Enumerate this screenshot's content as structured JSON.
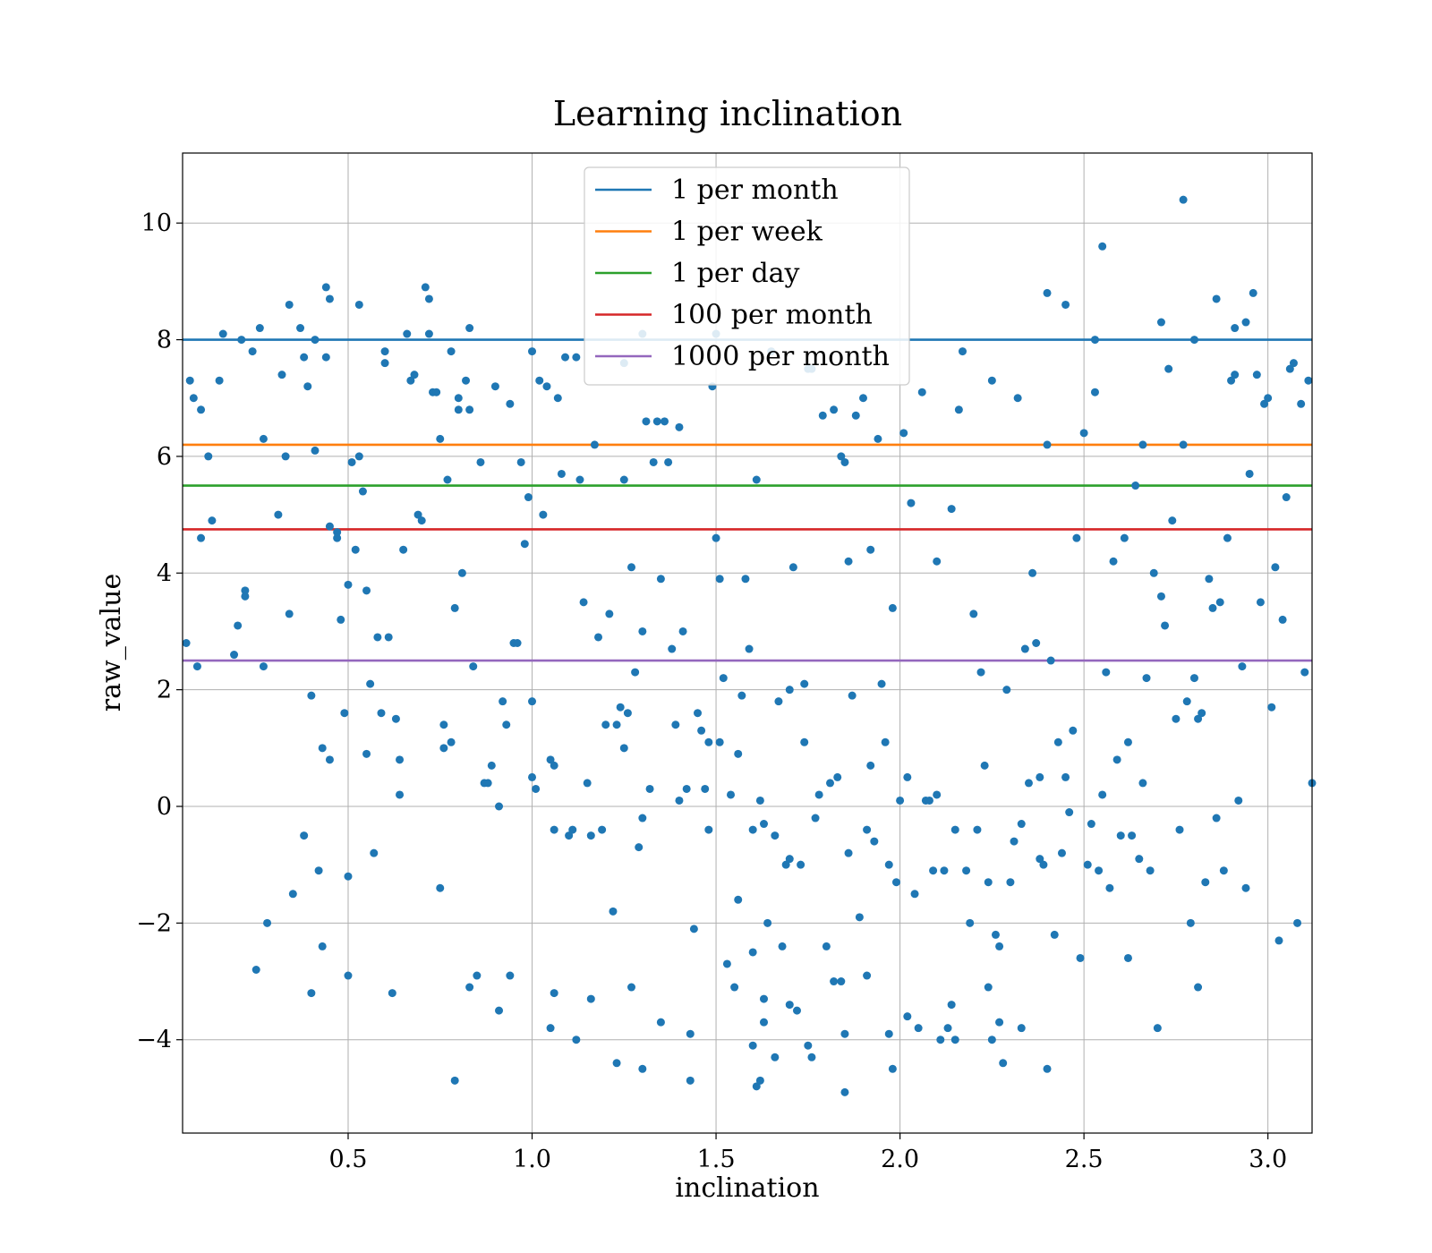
{
  "chart_data": {
    "type": "scatter",
    "title": "Learning inclination",
    "xlabel": "inclination",
    "ylabel": "raw_value",
    "xlim": [
      0.05,
      3.12
    ],
    "ylim": [
      -5.6,
      11.2
    ],
    "xticks": [
      0.5,
      1.0,
      1.5,
      2.0,
      2.5,
      3.0
    ],
    "xtick_labels": [
      "0.5",
      "1.0",
      "1.5",
      "2.0",
      "2.5",
      "3.0"
    ],
    "yticks": [
      -4,
      -2,
      0,
      2,
      4,
      6,
      8,
      10
    ],
    "ytick_labels": [
      "−4",
      "−2",
      "0",
      "2",
      "4",
      "6",
      "8",
      "10"
    ],
    "grid": true,
    "legend_position": "upper center",
    "point_color": "#1f77b4",
    "hlines": [
      {
        "name": "1 per month",
        "y": 8.0,
        "color": "#1f77b4"
      },
      {
        "name": "1 per week",
        "y": 6.2,
        "color": "#ff7f0e"
      },
      {
        "name": "1 per day",
        "y": 5.5,
        "color": "#2ca02c"
      },
      {
        "name": "100 per month",
        "y": 4.75,
        "color": "#d62728"
      },
      {
        "name": "1000 per month",
        "y": 2.5,
        "color": "#9467bd"
      }
    ],
    "points": [
      [
        0.06,
        2.8
      ],
      [
        0.07,
        7.3
      ],
      [
        0.08,
        7.0
      ],
      [
        0.09,
        2.4
      ],
      [
        0.1,
        4.6
      ],
      [
        0.1,
        6.8
      ],
      [
        0.12,
        6.0
      ],
      [
        0.13,
        4.9
      ],
      [
        0.15,
        7.3
      ],
      [
        0.19,
        2.6
      ],
      [
        0.2,
        3.1
      ],
      [
        0.21,
        8.0
      ],
      [
        0.22,
        3.6
      ],
      [
        0.22,
        3.7
      ],
      [
        0.24,
        7.8
      ],
      [
        0.25,
        -2.8
      ],
      [
        0.27,
        2.4
      ],
      [
        0.27,
        6.3
      ],
      [
        0.28,
        -2.0
      ],
      [
        0.31,
        5.0
      ],
      [
        0.32,
        7.4
      ],
      [
        0.33,
        6.0
      ],
      [
        0.34,
        3.3
      ],
      [
        0.35,
        -1.5
      ],
      [
        0.37,
        8.2
      ],
      [
        0.38,
        -0.5
      ],
      [
        0.38,
        7.7
      ],
      [
        0.39,
        7.2
      ],
      [
        0.4,
        1.9
      ],
      [
        0.41,
        6.1
      ],
      [
        0.42,
        -1.1
      ],
      [
        0.43,
        1.0
      ],
      [
        0.43,
        -2.4
      ],
      [
        0.44,
        7.7
      ],
      [
        0.45,
        4.8
      ],
      [
        0.45,
        0.8
      ],
      [
        0.47,
        4.7
      ],
      [
        0.47,
        4.6
      ],
      [
        0.48,
        3.2
      ],
      [
        0.49,
        1.6
      ],
      [
        0.5,
        -1.2
      ],
      [
        0.5,
        3.8
      ],
      [
        0.51,
        5.9
      ],
      [
        0.52,
        4.4
      ],
      [
        0.53,
        6.0
      ],
      [
        0.53,
        8.6
      ],
      [
        0.54,
        5.4
      ],
      [
        0.55,
        0.9
      ],
      [
        0.55,
        3.7
      ],
      [
        0.56,
        2.1
      ],
      [
        0.57,
        -0.8
      ],
      [
        0.58,
        2.9
      ],
      [
        0.59,
        1.6
      ],
      [
        0.6,
        7.6
      ],
      [
        0.6,
        7.8
      ],
      [
        0.61,
        2.9
      ],
      [
        0.62,
        -3.2
      ],
      [
        0.63,
        1.5
      ],
      [
        0.64,
        0.2
      ],
      [
        0.65,
        4.4
      ],
      [
        0.66,
        8.1
      ],
      [
        0.67,
        7.3
      ],
      [
        0.68,
        7.4
      ],
      [
        0.69,
        5.0
      ],
      [
        0.7,
        4.9
      ],
      [
        0.71,
        8.9
      ],
      [
        0.72,
        8.7
      ],
      [
        0.73,
        7.1
      ],
      [
        0.74,
        7.1
      ],
      [
        0.75,
        6.3
      ],
      [
        0.75,
        -1.4
      ],
      [
        0.76,
        1.0
      ],
      [
        0.77,
        5.6
      ],
      [
        0.78,
        1.1
      ],
      [
        0.78,
        7.8
      ],
      [
        0.79,
        3.4
      ],
      [
        0.8,
        6.8
      ],
      [
        0.8,
        7.0
      ],
      [
        0.81,
        4.0
      ],
      [
        0.82,
        7.3
      ],
      [
        0.83,
        6.8
      ],
      [
        0.84,
        2.4
      ],
      [
        0.85,
        -2.9
      ],
      [
        0.86,
        5.9
      ],
      [
        0.87,
        0.4
      ],
      [
        0.88,
        0.4
      ],
      [
        0.89,
        0.7
      ],
      [
        0.9,
        7.2
      ],
      [
        0.91,
        0.0
      ],
      [
        0.92,
        1.8
      ],
      [
        0.93,
        1.4
      ],
      [
        0.94,
        6.9
      ],
      [
        0.95,
        2.8
      ],
      [
        0.96,
        2.8
      ],
      [
        0.97,
        5.9
      ],
      [
        0.98,
        4.5
      ],
      [
        0.99,
        5.3
      ],
      [
        1.0,
        1.8
      ],
      [
        1.0,
        7.8
      ],
      [
        1.01,
        0.3
      ],
      [
        1.02,
        7.3
      ],
      [
        1.03,
        5.0
      ],
      [
        1.04,
        7.2
      ],
      [
        1.05,
        0.8
      ],
      [
        1.06,
        -0.4
      ],
      [
        1.06,
        0.7
      ],
      [
        1.07,
        7.0
      ],
      [
        1.08,
        5.7
      ],
      [
        1.09,
        7.7
      ],
      [
        1.1,
        -0.5
      ],
      [
        1.11,
        -0.4
      ],
      [
        1.12,
        7.7
      ],
      [
        1.13,
        5.6
      ],
      [
        1.14,
        3.5
      ],
      [
        1.15,
        0.4
      ],
      [
        1.16,
        -0.5
      ],
      [
        1.17,
        6.2
      ],
      [
        1.18,
        2.9
      ],
      [
        1.19,
        -0.4
      ],
      [
        1.2,
        1.4
      ],
      [
        1.21,
        3.3
      ],
      [
        1.22,
        -1.8
      ],
      [
        1.23,
        1.4
      ],
      [
        1.24,
        1.7
      ],
      [
        1.25,
        7.6
      ],
      [
        1.25,
        5.6
      ],
      [
        1.26,
        1.6
      ],
      [
        1.27,
        4.1
      ],
      [
        1.28,
        2.3
      ],
      [
        1.29,
        -0.7
      ],
      [
        1.3,
        3.0
      ],
      [
        1.3,
        -0.2
      ],
      [
        1.31,
        6.6
      ],
      [
        1.32,
        0.3
      ],
      [
        1.33,
        5.9
      ],
      [
        1.34,
        6.6
      ],
      [
        1.35,
        3.9
      ],
      [
        1.36,
        6.6
      ],
      [
        1.37,
        5.9
      ],
      [
        1.38,
        2.7
      ],
      [
        1.39,
        1.4
      ],
      [
        1.4,
        6.5
      ],
      [
        1.41,
        3.0
      ],
      [
        1.42,
        0.3
      ],
      [
        1.43,
        -4.7
      ],
      [
        1.44,
        -2.1
      ],
      [
        1.45,
        1.6
      ],
      [
        1.46,
        1.3
      ],
      [
        1.47,
        0.3
      ],
      [
        1.48,
        -0.4
      ],
      [
        1.49,
        7.2
      ],
      [
        1.5,
        4.6
      ],
      [
        1.5,
        8.1
      ],
      [
        1.51,
        3.9
      ],
      [
        1.52,
        2.2
      ],
      [
        1.53,
        -2.7
      ],
      [
        1.54,
        0.2
      ],
      [
        1.55,
        -3.1
      ],
      [
        1.56,
        -1.6
      ],
      [
        1.57,
        1.9
      ],
      [
        1.58,
        3.9
      ],
      [
        1.59,
        2.7
      ],
      [
        1.6,
        -2.5
      ],
      [
        1.6,
        -0.4
      ],
      [
        1.61,
        5.6
      ],
      [
        1.62,
        0.1
      ],
      [
        1.63,
        -0.3
      ],
      [
        1.64,
        -2.0
      ],
      [
        1.65,
        7.8
      ],
      [
        1.66,
        -0.5
      ],
      [
        1.67,
        1.8
      ],
      [
        1.68,
        -2.4
      ],
      [
        1.69,
        -1.0
      ],
      [
        1.7,
        -0.9
      ],
      [
        1.7,
        2.0
      ],
      [
        1.71,
        4.1
      ],
      [
        1.72,
        -3.5
      ],
      [
        1.73,
        -1.0
      ],
      [
        1.74,
        2.1
      ],
      [
        1.75,
        7.5
      ],
      [
        1.76,
        7.5
      ],
      [
        1.77,
        -0.2
      ],
      [
        1.78,
        0.2
      ],
      [
        1.79,
        6.7
      ],
      [
        1.8,
        -2.4
      ],
      [
        1.81,
        0.4
      ],
      [
        1.82,
        6.8
      ],
      [
        1.83,
        0.5
      ],
      [
        1.84,
        6.0
      ],
      [
        1.85,
        5.9
      ],
      [
        1.86,
        4.2
      ],
      [
        1.86,
        -0.8
      ],
      [
        1.87,
        1.9
      ],
      [
        1.88,
        6.7
      ],
      [
        1.89,
        -1.9
      ],
      [
        1.9,
        7.0
      ],
      [
        1.91,
        -0.4
      ],
      [
        1.92,
        4.4
      ],
      [
        1.93,
        -0.6
      ],
      [
        1.94,
        6.3
      ],
      [
        1.95,
        2.1
      ],
      [
        1.96,
        1.1
      ],
      [
        1.97,
        -1.0
      ],
      [
        1.98,
        3.4
      ],
      [
        1.99,
        -1.3
      ],
      [
        2.0,
        0.1
      ],
      [
        2.01,
        6.4
      ],
      [
        2.02,
        0.5
      ],
      [
        2.03,
        5.2
      ],
      [
        2.04,
        -1.5
      ],
      [
        2.05,
        -3.8
      ],
      [
        2.06,
        7.1
      ],
      [
        2.07,
        0.1
      ],
      [
        2.08,
        0.1
      ],
      [
        2.09,
        -1.1
      ],
      [
        2.1,
        4.2
      ],
      [
        2.11,
        -4.0
      ],
      [
        2.12,
        -1.1
      ],
      [
        2.13,
        -3.8
      ],
      [
        2.14,
        5.1
      ],
      [
        2.15,
        -0.4
      ],
      [
        2.16,
        6.8
      ],
      [
        2.17,
        7.8
      ],
      [
        2.18,
        -1.1
      ],
      [
        2.19,
        -2.0
      ],
      [
        2.2,
        3.3
      ],
      [
        2.21,
        -0.4
      ],
      [
        2.22,
        2.3
      ],
      [
        2.23,
        0.7
      ],
      [
        2.24,
        -1.3
      ],
      [
        2.25,
        7.3
      ],
      [
        2.26,
        -2.2
      ],
      [
        2.27,
        -2.4
      ],
      [
        2.28,
        -4.4
      ],
      [
        2.29,
        2.0
      ],
      [
        2.3,
        -1.3
      ],
      [
        2.31,
        -0.6
      ],
      [
        2.32,
        7.0
      ],
      [
        2.33,
        -0.3
      ],
      [
        2.34,
        2.7
      ],
      [
        2.35,
        0.4
      ],
      [
        2.36,
        4.0
      ],
      [
        2.37,
        2.8
      ],
      [
        2.38,
        -0.9
      ],
      [
        2.39,
        -1.0
      ],
      [
        2.4,
        6.2
      ],
      [
        2.41,
        2.5
      ],
      [
        2.42,
        -2.2
      ],
      [
        2.43,
        1.1
      ],
      [
        2.44,
        -0.8
      ],
      [
        2.45,
        0.5
      ],
      [
        2.46,
        -0.1
      ],
      [
        2.47,
        1.3
      ],
      [
        2.48,
        4.6
      ],
      [
        2.49,
        -2.6
      ],
      [
        2.5,
        6.4
      ],
      [
        2.51,
        -1.0
      ],
      [
        2.52,
        -0.3
      ],
      [
        2.53,
        7.1
      ],
      [
        2.54,
        -1.1
      ],
      [
        2.55,
        0.2
      ],
      [
        2.56,
        2.3
      ],
      [
        2.57,
        -1.4
      ],
      [
        2.58,
        4.2
      ],
      [
        2.59,
        0.8
      ],
      [
        2.6,
        -0.5
      ],
      [
        2.61,
        4.6
      ],
      [
        2.62,
        1.1
      ],
      [
        2.63,
        -0.5
      ],
      [
        2.64,
        5.5
      ],
      [
        2.65,
        -0.9
      ],
      [
        2.66,
        6.2
      ],
      [
        2.67,
        2.2
      ],
      [
        2.68,
        -1.1
      ],
      [
        2.69,
        4.0
      ],
      [
        2.7,
        -3.8
      ],
      [
        2.71,
        3.6
      ],
      [
        2.72,
        3.1
      ],
      [
        2.73,
        7.5
      ],
      [
        2.74,
        4.9
      ],
      [
        2.75,
        1.5
      ],
      [
        2.76,
        -0.4
      ],
      [
        2.77,
        6.2
      ],
      [
        2.78,
        1.8
      ],
      [
        2.79,
        -2.0
      ],
      [
        2.8,
        2.2
      ],
      [
        2.81,
        1.5
      ],
      [
        2.82,
        1.6
      ],
      [
        2.83,
        -1.3
      ],
      [
        2.84,
        3.9
      ],
      [
        2.85,
        3.4
      ],
      [
        2.86,
        -0.2
      ],
      [
        2.87,
        3.5
      ],
      [
        2.88,
        -1.1
      ],
      [
        2.89,
        4.6
      ],
      [
        2.9,
        7.3
      ],
      [
        2.91,
        7.4
      ],
      [
        2.92,
        0.1
      ],
      [
        2.93,
        2.4
      ],
      [
        2.94,
        -1.4
      ],
      [
        2.95,
        5.7
      ],
      [
        2.96,
        8.8
      ],
      [
        2.97,
        7.4
      ],
      [
        2.98,
        3.5
      ],
      [
        2.99,
        6.9
      ],
      [
        3.0,
        7.0
      ],
      [
        3.01,
        1.7
      ],
      [
        3.02,
        4.1
      ],
      [
        3.03,
        -2.3
      ],
      [
        3.04,
        3.2
      ],
      [
        3.05,
        5.3
      ],
      [
        3.06,
        7.5
      ],
      [
        3.07,
        7.6
      ],
      [
        3.08,
        -2.0
      ],
      [
        3.09,
        6.9
      ],
      [
        3.1,
        2.3
      ],
      [
        3.11,
        7.3
      ],
      [
        3.12,
        0.4
      ],
      [
        2.55,
        9.6
      ],
      [
        2.77,
        10.4
      ],
      [
        2.45,
        8.6
      ],
      [
        2.4,
        8.8
      ],
      [
        2.86,
        8.7
      ],
      [
        2.71,
        8.3
      ],
      [
        2.94,
        8.3
      ],
      [
        2.91,
        8.2
      ],
      [
        0.44,
        8.9
      ],
      [
        0.34,
        8.6
      ],
      [
        0.45,
        8.7
      ],
      [
        1.3,
        8.1
      ],
      [
        0.72,
        8.1
      ],
      [
        0.83,
        8.2
      ],
      [
        0.26,
        8.2
      ],
      [
        0.16,
        8.1
      ],
      [
        0.41,
        8.0
      ],
      [
        2.53,
        8.0
      ],
      [
        2.8,
        8.0
      ],
      [
        1.85,
        -4.9
      ],
      [
        1.61,
        -4.8
      ],
      [
        1.62,
        -4.7
      ],
      [
        0.79,
        -4.7
      ],
      [
        1.3,
        -4.5
      ],
      [
        1.23,
        -4.4
      ],
      [
        1.76,
        -4.3
      ],
      [
        1.98,
        -4.5
      ],
      [
        2.4,
        -4.5
      ],
      [
        1.66,
        -4.3
      ],
      [
        1.6,
        -4.1
      ],
      [
        1.75,
        -4.1
      ],
      [
        2.15,
        -4.0
      ],
      [
        2.25,
        -4.0
      ],
      [
        1.12,
        -4.0
      ],
      [
        1.43,
        -3.9
      ],
      [
        2.33,
        -3.8
      ],
      [
        1.05,
        -3.8
      ],
      [
        1.85,
        -3.9
      ],
      [
        1.97,
        -3.9
      ],
      [
        0.5,
        -2.9
      ],
      [
        0.4,
        -3.2
      ],
      [
        0.91,
        -3.5
      ],
      [
        1.06,
        -3.2
      ],
      [
        2.81,
        -3.1
      ],
      [
        1.16,
        -3.3
      ],
      [
        1.63,
        -3.3
      ],
      [
        1.7,
        -3.4
      ],
      [
        2.14,
        -3.4
      ],
      [
        0.83,
        -3.1
      ],
      [
        1.84,
        -3.0
      ],
      [
        1.82,
        -3.0
      ],
      [
        2.62,
        -2.6
      ],
      [
        1.27,
        -3.1
      ],
      [
        0.94,
        -2.9
      ],
      [
        1.91,
        -2.9
      ],
      [
        2.24,
        -3.1
      ],
      [
        1.35,
        -3.7
      ],
      [
        1.63,
        -3.7
      ],
      [
        2.02,
        -3.6
      ],
      [
        2.27,
        -3.7
      ],
      [
        1.51,
        1.1
      ],
      [
        1.56,
        0.9
      ],
      [
        0.64,
        0.8
      ],
      [
        0.76,
        1.4
      ],
      [
        1.0,
        0.5
      ],
      [
        1.25,
        1.0
      ],
      [
        1.4,
        0.1
      ],
      [
        1.48,
        1.1
      ],
      [
        1.74,
        1.1
      ],
      [
        1.92,
        0.7
      ],
      [
        2.1,
        0.2
      ],
      [
        2.38,
        0.5
      ],
      [
        2.66,
        0.4
      ]
    ]
  }
}
